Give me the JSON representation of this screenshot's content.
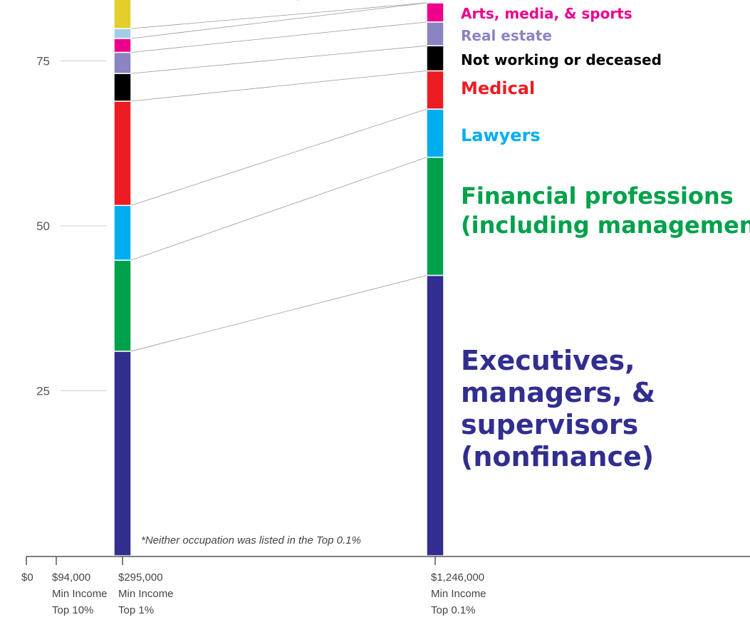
{
  "chart_data": {
    "type": "stacked-bar",
    "ylim": [
      0,
      85
    ],
    "yticks": [
      "25",
      "50",
      "75"
    ],
    "x_ticks": [
      {
        "value": 0,
        "label": "$0",
        "sub1": "",
        "sub2": ""
      },
      {
        "value": 94000,
        "label": "$94,000",
        "sub1": "Min Income",
        "sub2": "Top 10%"
      },
      {
        "value": 295000,
        "label": "$295,000",
        "sub1": "Min Income",
        "sub2": "Top 1%"
      },
      {
        "value": 1246000,
        "label": "$1,246,000",
        "sub1": "Min Income",
        "sub2": "Top 0.1%"
      }
    ],
    "categories": [
      "Top 1%",
      "Top 0.1%"
    ],
    "series": [
      {
        "name": "Executives, managers, & supervisors (nonfinance)",
        "color": "#312e90",
        "values": [
          31.0,
          42.5
        ]
      },
      {
        "name": "Financial professions (including management)",
        "color": "#00a14b",
        "values": [
          13.8,
          17.9
        ]
      },
      {
        "name": "Lawyers",
        "color": "#00aeef",
        "values": [
          8.3,
          7.3
        ]
      },
      {
        "name": "Medical",
        "color": "#ed1c24",
        "values": [
          15.8,
          5.8
        ]
      },
      {
        "name": "Not working or deceased",
        "color": "#000000",
        "values": [
          4.2,
          3.8
        ]
      },
      {
        "name": "Real estate",
        "color": "#8a84c2",
        "values": [
          3.2,
          3.6
        ]
      },
      {
        "name": "Arts, media, & sports",
        "color": "#ec008c",
        "values": [
          2.1,
          2.9
        ]
      },
      {
        "name": "",
        "color": "#a3cce9",
        "values": [
          1.5,
          0
        ]
      },
      {
        "name": "",
        "color": "#e2cf2a",
        "values": [
          6.0,
          0
        ]
      }
    ],
    "labels": [
      {
        "lines": [
          "Arts, media, & sports"
        ],
        "color": "#ec008c"
      },
      {
        "lines": [
          "Real estate"
        ],
        "color": "#8a84c2"
      },
      {
        "lines": [
          "Not working or deceased"
        ],
        "color": "#000000"
      },
      {
        "lines": [
          "Medical"
        ],
        "color": "#ed1c24"
      },
      {
        "lines": [
          "Lawyers"
        ],
        "color": "#00aeef"
      },
      {
        "lines": [
          "Financial professions",
          "(including management)"
        ],
        "color": "#00a14b"
      },
      {
        "lines": [
          "Executives,",
          "managers, &",
          "supervisors",
          "(nonfinance)"
        ],
        "color": "#312e90"
      }
    ],
    "note": "*Neither occupation was listed in the Top 0.1%"
  }
}
